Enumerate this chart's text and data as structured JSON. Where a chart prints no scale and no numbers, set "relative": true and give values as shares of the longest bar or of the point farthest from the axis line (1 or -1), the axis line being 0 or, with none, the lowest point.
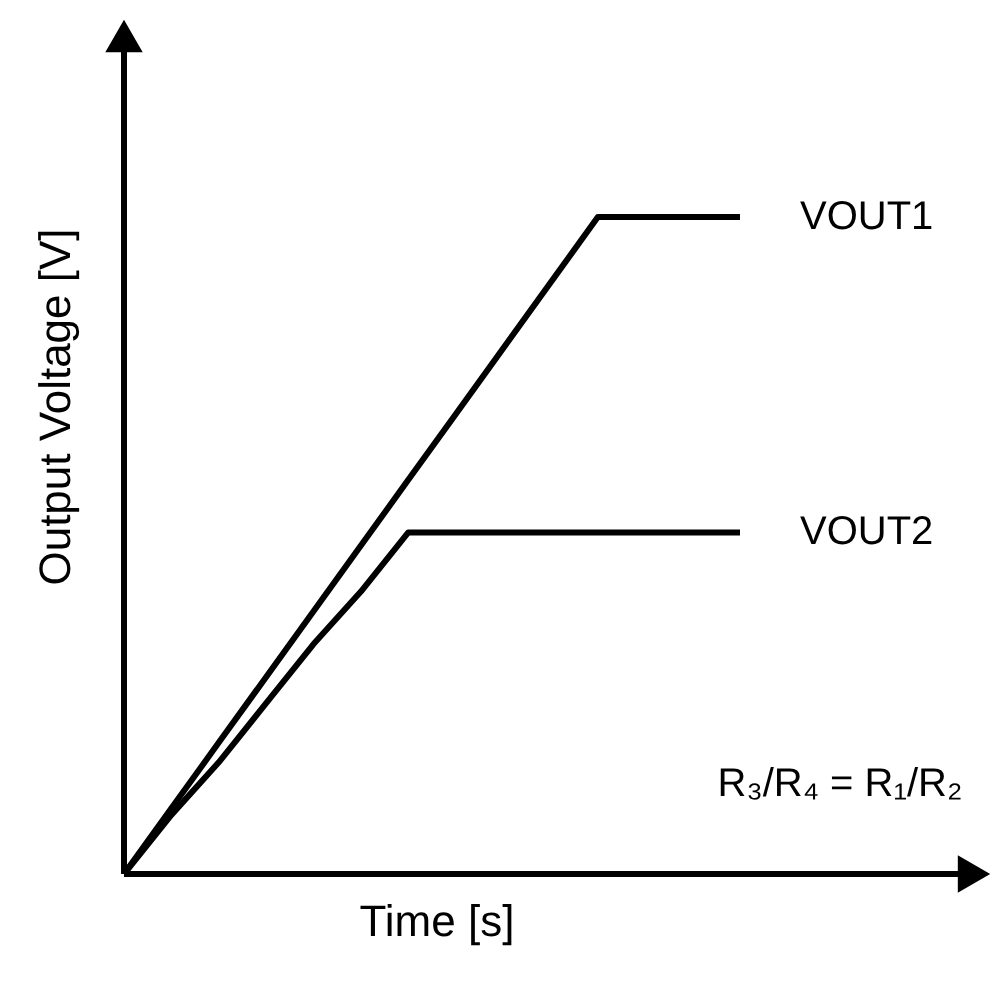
{
  "chart_data": {
    "type": "line",
    "relative": true,
    "xlabel": "Time [s]",
    "ylabel": "Output Voltage [V]",
    "categories": [
      null,
      null,
      null,
      null,
      null,
      null,
      null,
      null,
      null,
      null,
      null,
      null,
      null,
      null
    ],
    "tick_labels": false,
    "marker": "none",
    "line_style": "solid",
    "series": [
      {
        "name": "VOUT1",
        "color": "#000000",
        "values": [
          0,
          0.1,
          0.2,
          0.3,
          0.4,
          0.5,
          0.6,
          0.7,
          0.8,
          0.9,
          1,
          1,
          1,
          1
        ]
      },
      {
        "name": "VOUT2",
        "color": "#000000",
        "values": [
          0,
          0.09,
          0.17,
          0.26,
          0.35,
          0.43,
          0.52,
          0.52,
          0.52,
          0.52,
          0.52,
          0.52,
          0.52,
          0.52
        ]
      }
    ],
    "annotations": [
      "R₃/R₄ = R₁/R₂"
    ]
  }
}
